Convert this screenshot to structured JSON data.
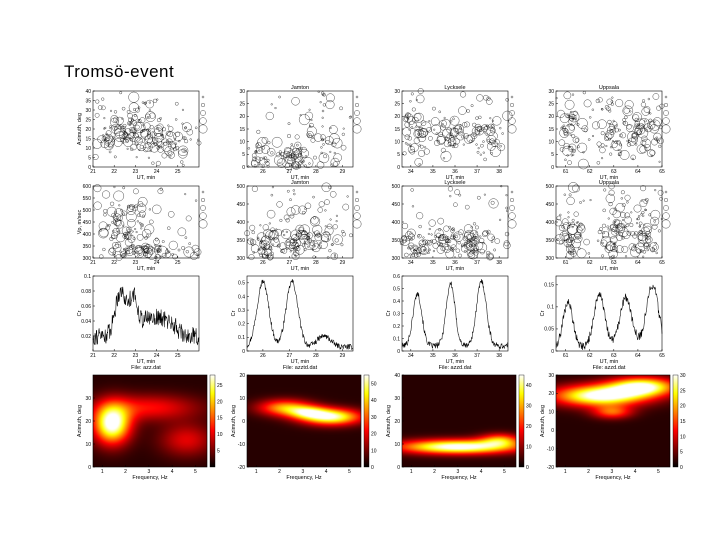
{
  "page": {
    "title": "Tromsö-event"
  },
  "colors": {
    "axis": "#000000",
    "marker": "#000000",
    "heat_low": "#000000",
    "heat_mid": "#c81400",
    "heat_high": "#ffff66"
  },
  "chart_data": [
    {
      "id": "scatter-az-1",
      "type": "scatter",
      "title": "",
      "xlabel": "UT, min",
      "ylabel": "Azimuth, deg",
      "xlim": [
        21,
        26
      ],
      "ylim": [
        0,
        40
      ],
      "xticks": [
        21,
        22,
        23,
        24,
        25
      ],
      "yticks": [
        0,
        5,
        10,
        15,
        20,
        25,
        30,
        35,
        40
      ],
      "seed": 11,
      "clusters": [
        {
          "x": 22.2,
          "y": 20,
          "sx": 0.5,
          "sy": 7
        },
        {
          "x": 23.3,
          "y": 20,
          "sx": 0.6,
          "sy": 7
        },
        {
          "x": 24.5,
          "y": 12,
          "sx": 0.7,
          "sy": 6
        }
      ],
      "n": 220
    },
    {
      "id": "scatter-az-2",
      "type": "scatter",
      "title": "Jamton",
      "xlabel": "UT, min",
      "ylabel": "",
      "xlim": [
        25.4,
        29.4
      ],
      "ylim": [
        0,
        30
      ],
      "xticks": [
        26,
        27,
        28,
        29
      ],
      "yticks": [
        0,
        5,
        10,
        15,
        20,
        25,
        30
      ],
      "seed": 23,
      "clusters": [
        {
          "x": 26.0,
          "y": 3,
          "sx": 0.25,
          "sy": 3
        },
        {
          "x": 27.0,
          "y": 3,
          "sx": 0.3,
          "sy": 3
        },
        {
          "x": 28.0,
          "y": 8,
          "sx": 0.6,
          "sy": 8
        }
      ],
      "n": 170
    },
    {
      "id": "scatter-az-3",
      "type": "scatter",
      "title": "Lycksele",
      "xlabel": "UT, min",
      "ylabel": "",
      "xlim": [
        33.6,
        38.4
      ],
      "ylim": [
        0,
        30
      ],
      "xticks": [
        34,
        35,
        36,
        37,
        38
      ],
      "yticks": [
        0,
        5,
        10,
        15,
        20,
        25,
        30
      ],
      "seed": 37,
      "clusters": [
        {
          "x": 34.2,
          "y": 13,
          "sx": 0.3,
          "sy": 4
        },
        {
          "x": 35.8,
          "y": 13,
          "sx": 0.4,
          "sy": 4
        },
        {
          "x": 37.2,
          "y": 13,
          "sx": 0.4,
          "sy": 4
        }
      ],
      "n": 180
    },
    {
      "id": "scatter-az-4",
      "type": "scatter",
      "title": "Uppsala",
      "xlabel": "UT, min",
      "ylabel": "",
      "xlim": [
        60.6,
        65
      ],
      "ylim": [
        0,
        30
      ],
      "xticks": [
        61,
        62,
        63,
        64,
        65
      ],
      "yticks": [
        0,
        5,
        10,
        15,
        20,
        25,
        30
      ],
      "seed": 41,
      "clusters": [
        {
          "x": 61.3,
          "y": 14,
          "sx": 0.3,
          "sy": 6
        },
        {
          "x": 63.0,
          "y": 14,
          "sx": 0.4,
          "sy": 6
        },
        {
          "x": 64.3,
          "y": 14,
          "sx": 0.4,
          "sy": 6
        }
      ],
      "n": 200
    },
    {
      "id": "scatter-vp-1",
      "type": "scatter",
      "title": "",
      "xlabel": "UT, min",
      "ylabel": "Vp, m/sec",
      "xlim": [
        21,
        26
      ],
      "ylim": [
        300,
        600
      ],
      "xticks": [
        21,
        22,
        23,
        24,
        25
      ],
      "yticks": [
        300,
        350,
        400,
        450,
        500,
        550,
        600
      ],
      "seed": 53,
      "clusters": [
        {
          "x": 23.5,
          "y": 325,
          "sx": 1.2,
          "sy": 20
        },
        {
          "x": 22.5,
          "y": 420,
          "sx": 0.8,
          "sy": 70
        }
      ],
      "n": 200
    },
    {
      "id": "scatter-vp-2",
      "type": "scatter",
      "title": "Jamton",
      "xlabel": "UT, min",
      "ylabel": "",
      "xlim": [
        25.4,
        29.4
      ],
      "ylim": [
        300,
        500
      ],
      "xticks": [
        26,
        27,
        28,
        29
      ],
      "yticks": [
        300,
        350,
        400,
        450,
        500
      ],
      "seed": 61,
      "clusters": [
        {
          "x": 26.0,
          "y": 340,
          "sx": 0.3,
          "sy": 30
        },
        {
          "x": 27.2,
          "y": 340,
          "sx": 0.4,
          "sy": 30
        },
        {
          "x": 28.2,
          "y": 370,
          "sx": 0.5,
          "sy": 40
        }
      ],
      "n": 200
    },
    {
      "id": "scatter-vp-3",
      "type": "scatter",
      "title": "Lycksele",
      "xlabel": "UT, min",
      "ylabel": "",
      "xlim": [
        33.6,
        38.4
      ],
      "ylim": [
        300,
        500
      ],
      "xticks": [
        34,
        35,
        36,
        37,
        38
      ],
      "yticks": [
        300,
        350,
        400,
        450,
        500
      ],
      "seed": 71,
      "clusters": [
        {
          "x": 34.3,
          "y": 330,
          "sx": 0.4,
          "sy": 25
        },
        {
          "x": 35.6,
          "y": 340,
          "sx": 0.4,
          "sy": 30
        },
        {
          "x": 37.0,
          "y": 335,
          "sx": 0.5,
          "sy": 25
        }
      ],
      "n": 200
    },
    {
      "id": "scatter-vp-4",
      "type": "scatter",
      "title": "Uppsala",
      "xlabel": "UT, min",
      "ylabel": "",
      "xlim": [
        60.6,
        65
      ],
      "ylim": [
        300,
        500
      ],
      "xticks": [
        61,
        62,
        63,
        64,
        65
      ],
      "yticks": [
        300,
        350,
        400,
        450,
        500
      ],
      "seed": 83,
      "clusters": [
        {
          "x": 61.3,
          "y": 360,
          "sx": 0.3,
          "sy": 40
        },
        {
          "x": 63.0,
          "y": 370,
          "sx": 0.4,
          "sy": 40
        },
        {
          "x": 64.3,
          "y": 380,
          "sx": 0.4,
          "sy": 45
        }
      ],
      "n": 220
    },
    {
      "id": "line-cr-1",
      "type": "line",
      "title": "",
      "xlabel": "UT, min",
      "caption": "File: azz.dat",
      "ylabel": "Cr",
      "xlim": [
        21,
        26
      ],
      "ylim": [
        0,
        0.1
      ],
      "xticks": [
        21,
        22,
        23,
        24,
        25
      ],
      "yticks": [
        0.02,
        0.04,
        0.06,
        0.08,
        0.1
      ],
      "seed": 91,
      "base": 0.02,
      "peaks": [
        {
          "x": 22.3,
          "h": 0.06,
          "w": 0.25
        },
        {
          "x": 22.9,
          "h": 0.05,
          "w": 0.2
        },
        {
          "x": 23.5,
          "h": 0.02,
          "w": 0.3
        },
        {
          "x": 24.1,
          "h": 0.02,
          "w": 0.3
        },
        {
          "x": 24.7,
          "h": 0.015,
          "w": 0.3
        }
      ],
      "noise": 0.012
    },
    {
      "id": "line-cr-2",
      "type": "line",
      "title": "",
      "xlabel": "UT, min",
      "caption": "File: azztd.dat",
      "ylabel": "Cr",
      "xlim": [
        25.4,
        29.4
      ],
      "ylim": [
        0,
        0.55
      ],
      "xticks": [
        26,
        27,
        28,
        29
      ],
      "yticks": [
        0,
        0.1,
        0.2,
        0.3,
        0.4,
        0.5
      ],
      "seed": 97,
      "base": 0.03,
      "peaks": [
        {
          "x": 26.0,
          "h": 0.48,
          "w": 0.22
        },
        {
          "x": 27.1,
          "h": 0.48,
          "w": 0.22
        },
        {
          "x": 28.3,
          "h": 0.08,
          "w": 0.25
        }
      ],
      "noise": 0.02
    },
    {
      "id": "line-cr-3",
      "type": "line",
      "title": "",
      "xlabel": "UT, min",
      "caption": "File: azzd.dat",
      "ylabel": "Cr",
      "xlim": [
        33.6,
        38.4
      ],
      "ylim": [
        0,
        0.6
      ],
      "xticks": [
        34,
        35,
        36,
        37,
        38
      ],
      "yticks": [
        0,
        0.1,
        0.2,
        0.3,
        0.4,
        0.5,
        0.6
      ],
      "seed": 101,
      "base": 0.04,
      "peaks": [
        {
          "x": 34.3,
          "h": 0.42,
          "w": 0.2
        },
        {
          "x": 35.8,
          "h": 0.5,
          "w": 0.2
        },
        {
          "x": 37.2,
          "h": 0.52,
          "w": 0.22
        }
      ],
      "noise": 0.025
    },
    {
      "id": "line-cr-4",
      "type": "line",
      "title": "",
      "xlabel": "UT, min",
      "caption": "File: azzd.dat",
      "ylabel": "Cr",
      "xlim": [
        60.6,
        65
      ],
      "ylim": [
        0,
        0.17
      ],
      "xticks": [
        61,
        62,
        63,
        64,
        65
      ],
      "yticks": [
        0,
        0.05,
        0.1,
        0.15
      ],
      "seed": 109,
      "base": 0.01,
      "peaks": [
        {
          "x": 61.1,
          "h": 0.1,
          "w": 0.2
        },
        {
          "x": 62.4,
          "h": 0.12,
          "w": 0.22
        },
        {
          "x": 63.5,
          "h": 0.11,
          "w": 0.25
        },
        {
          "x": 64.6,
          "h": 0.14,
          "w": 0.25
        }
      ],
      "noise": 0.01
    },
    {
      "id": "heatmap-1",
      "type": "heatmap",
      "title": "",
      "xlabel": "Frequency, Hz",
      "ylabel": "Azimuth, deg",
      "xlim": [
        0.6,
        5.5
      ],
      "ylim": [
        0,
        40
      ],
      "xticks": [
        1,
        2,
        3,
        4,
        5
      ],
      "yticks": [
        0,
        10,
        20,
        30
      ],
      "clim": [
        0,
        28
      ],
      "cticks": [
        5,
        10,
        15,
        20,
        25
      ],
      "blobs": [
        {
          "x": 1.4,
          "y": 19,
          "sx": 0.55,
          "sy": 6,
          "a": 1.0
        },
        {
          "x": 3.0,
          "y": 26,
          "sx": 1.5,
          "sy": 4,
          "a": 0.35
        },
        {
          "x": 4.6,
          "y": 12,
          "sx": 0.8,
          "sy": 5,
          "a": 0.3
        }
      ]
    },
    {
      "id": "heatmap-2",
      "type": "heatmap",
      "title": "",
      "xlabel": "Frequency, Hz",
      "ylabel": "Azimuth, deg",
      "xlim": [
        0.6,
        5.5
      ],
      "ylim": [
        -20,
        20
      ],
      "xticks": [
        1,
        2,
        3,
        4,
        5
      ],
      "yticks": [
        -20,
        -10,
        0,
        10,
        20
      ],
      "clim": [
        0,
        55
      ],
      "cticks": [
        0,
        10,
        20,
        30,
        40,
        50
      ],
      "blobs": [
        {
          "x": 4.2,
          "y": 2,
          "sx": 0.9,
          "sy": 2.5,
          "a": 0.9
        },
        {
          "x": 2.2,
          "y": 6,
          "sx": 0.8,
          "sy": 2.5,
          "a": 0.6
        },
        {
          "x": 3.2,
          "y": 4,
          "sx": 0.6,
          "sy": 2,
          "a": 0.5
        }
      ]
    },
    {
      "id": "heatmap-3",
      "type": "heatmap",
      "title": "",
      "xlabel": "Frequency, Hz",
      "ylabel": "Azimuth, deg",
      "xlim": [
        0.6,
        5.5
      ],
      "ylim": [
        0,
        40
      ],
      "xticks": [
        1,
        2,
        3,
        4,
        5
      ],
      "yticks": [
        0,
        10,
        20,
        30,
        40
      ],
      "clim": [
        0,
        45
      ],
      "cticks": [
        0,
        10,
        20,
        30,
        40
      ],
      "blobs": [
        {
          "x": 3.0,
          "y": 9,
          "sx": 1.8,
          "sy": 2.2,
          "a": 1.0
        },
        {
          "x": 4.8,
          "y": 12,
          "sx": 0.6,
          "sy": 2,
          "a": 0.5
        }
      ]
    },
    {
      "id": "heatmap-4",
      "type": "heatmap",
      "title": "",
      "xlabel": "Frequency, Hz",
      "ylabel": "Azimuth, deg",
      "xlim": [
        0.6,
        5.5
      ],
      "ylim": [
        -20,
        30
      ],
      "xticks": [
        1,
        2,
        3,
        4,
        5
      ],
      "yticks": [
        -20,
        -10,
        0,
        10,
        20,
        30
      ],
      "clim": [
        0,
        30
      ],
      "cticks": [
        0,
        5,
        10,
        15,
        20,
        25,
        30
      ],
      "blobs": [
        {
          "x": 2.5,
          "y": 19,
          "sx": 1.4,
          "sy": 4,
          "a": 1.0
        },
        {
          "x": 4.3,
          "y": 24,
          "sx": 1.0,
          "sy": 3.5,
          "a": 0.9
        },
        {
          "x": 3.0,
          "y": 10,
          "sx": 0.6,
          "sy": 2.5,
          "a": 0.45
        }
      ]
    }
  ]
}
